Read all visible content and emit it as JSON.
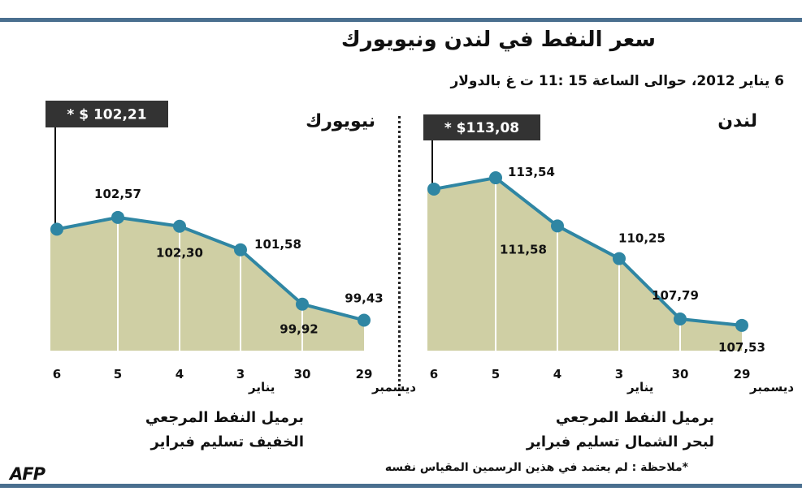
{
  "title": "سعر النفط في لندن ونيويورك",
  "subtitle": "6 يناير 2012، حوالى الساعة 15 :11 ت غ بالدولار",
  "colors": {
    "accent": "#2f86a3",
    "fill": "#cfcfa4",
    "bar": "#4a6f8f",
    "box": "#333333"
  },
  "chart_data": [
    {
      "type": "area",
      "title": "نيويورك",
      "categories": [
        "6",
        "5",
        "4",
        "3",
        "30",
        "29"
      ],
      "month_labels": [
        {
          "category": "3",
          "text": "يناير"
        },
        {
          "category": "29",
          "text": "ديسمبر"
        }
      ],
      "values": [
        102.21,
        102.57,
        102.3,
        101.58,
        99.92,
        99.43
      ],
      "value_labels": [
        "",
        "102,57",
        "102,30",
        "101,58",
        "99,92",
        "99,43"
      ],
      "current_label": "* $ 102,21",
      "ylim": [
        98.5,
        104.5
      ],
      "caption_line1": "برميل النفط المرجعي",
      "caption_line2": "الخفيف تسليم فبراير"
    },
    {
      "type": "area",
      "title": "لندن",
      "categories": [
        "6",
        "5",
        "4",
        "3",
        "30",
        "29"
      ],
      "month_labels": [
        {
          "category": "3",
          "text": "يناير"
        },
        {
          "category": "29",
          "text": "ديسمبر"
        }
      ],
      "values": [
        113.08,
        113.54,
        111.58,
        110.25,
        107.79,
        107.53
      ],
      "value_labels": [
        "",
        "113,54",
        "111,58",
        "110,25",
        "107,79",
        "107,53"
      ],
      "current_label": "* $113,08",
      "ylim": [
        106.5,
        114.5
      ],
      "caption_line1": "برميل النفط المرجعي",
      "caption_line2": "لبحر الشمال تسليم فبراير"
    }
  ],
  "note": "*ملاحظة : لم يعتمد في هذين الرسمين المقياس نفسه",
  "logo": "AFP"
}
